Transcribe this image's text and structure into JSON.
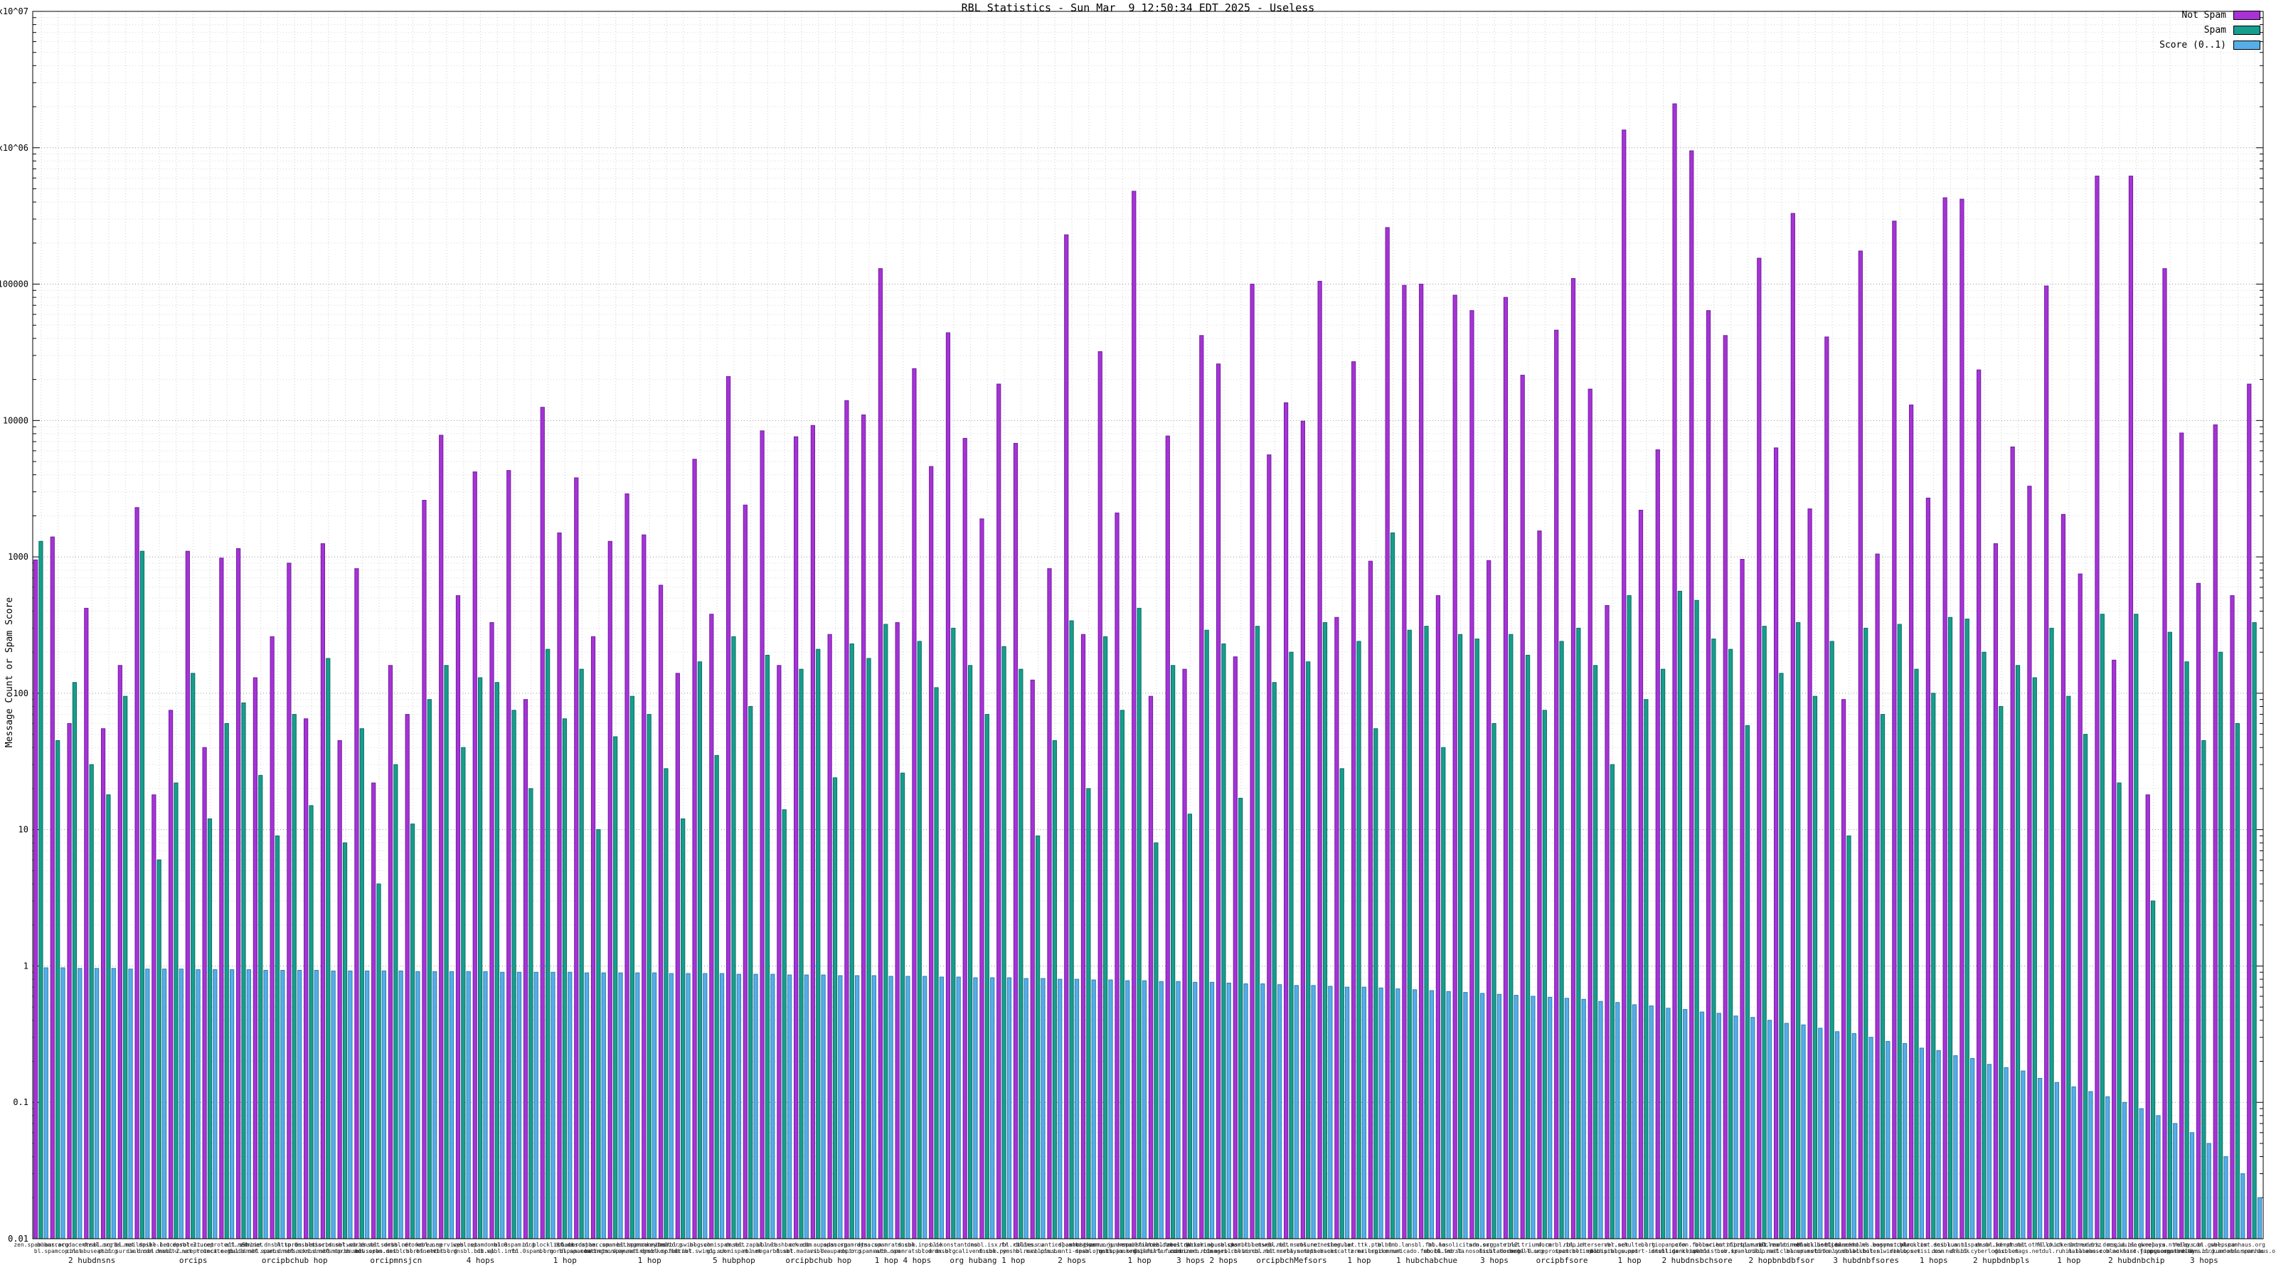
{
  "chart_data": {
    "type": "bar",
    "log_y": true,
    "grid": true,
    "legend_position": "top-right",
    "title": "RBL Statistics - Sun Mar  9 12:50:34 EDT 2025 - Useless",
    "ylabel": "Message Count or Spam Score",
    "xlabel": "",
    "ylim": [
      0.01,
      10000000
    ],
    "ytick_labels": [
      "0.01",
      "0.1",
      "1",
      "10",
      "100",
      "1000",
      "10000",
      "100000",
      "1x10^06",
      "1x10^07"
    ],
    "categories": [
      "zen.spamhaus.org",
      "bl.spamcop.net",
      "b.barracudacentral.org",
      "cbl.abuseat.org",
      "dnsbl.sorbs.net",
      "psbl.surriel.com",
      "bl.mailspike.net",
      "ix.dnsbl.manitu.net",
      "dnsbl-1.uceprotect.net",
      "dnsbl-2.uceprotect.net",
      "dnsbl-3.uceprotect.net",
      "truncate.gbudb.net",
      "all.s5h.net",
      "dul.dnsbl.sorbs.net",
      "zombie.dnsbl.sorbs.net",
      "spam.dnsbl.sorbs.net",
      "http.dnsbl.sorbs.net",
      "socks.dnsbl.sorbs.net",
      "misc.dnsbl.sorbs.net",
      "smtp.dnsbl.sorbs.net",
      "web.dnsbl.sorbs.net",
      "new.spam.dnsbl.sorbs.net",
      "dnsbl.dronebl.org",
      "rbl.efnetrbl.org",
      "korea.services.net",
      "virbl.dnsbl.bit.nl",
      "wpbl.spamdomains",
      "db.wpbl.info",
      "bl.0spam.org",
      "rbl.0spam.org",
      "bl.blocklist.de",
      "bl.nordspam.com",
      "dbl.nordspam.com",
      "bl.spameatingmonkey.net",
      "backscatter.spameatingmonkey.net",
      "badnets.spameatingmonkey.net",
      "bl.spamcannibal.org",
      "dnsbl.spfbl.net",
      "dnsrbl.swinog.ch",
      "uribl.swinog.ch",
      "bl.suomispam.net",
      "gl.suomispam.net",
      "dnsbl.zapbl.net",
      "rbl.megarbl.net",
      "ubl.lashback.com",
      "dnsbl.madavi.de",
      "orvedb.aupads.org",
      "rsbl.aupads.org",
      "spam.spamrats.com",
      "noptr.spamrats.com",
      "dyna.spamrats.com",
      "auth.spamrats.com",
      "dnsbl.inps.de",
      "bl.drmx.org",
      "bl.konstant.no",
      "dnsbl.calivent.com.pe",
      "dnsbl.isx.fr",
      "dnsbl.rymsho.ru",
      "rbl.rbldns.ru",
      "bl.mav.com.br",
      "cblless.anti-spam.org.cn",
      "cblplus.anti-spam.org.cn",
      "cdl.anti-spam.org.cn",
      "dnsbl.justspam.org",
      "hostkarma.junkemailfilter.com",
      "nobl.junkemailfilter.com",
      "spamsources.fabel.dk",
      "0spamurl.fusionzero.com",
      "uribl.zeustracker.abuse.ch",
      "combined.rbl.msrbl.net",
      "phishing.rbl.msrbl.net",
      "images.rbl.msrbl.net",
      "spam.rbl.msrbl.net",
      "virus.rbl.msrbl.net",
      "web.rbl.msrbl.net",
      "relays.nether.net",
      "unsure.nether.net",
      "ips.backscatterer.org",
      "singular.ttk.pte.hu",
      "z.mailspike.net",
      "bl.fmb.la",
      "communicado.fmb.la",
      "nsbl.fmb.la",
      "short.fmb.la",
      "bl.nosolicitado.org",
      "bl.worst.nosolicitado.org",
      "srn.surgate.net",
      "dnsbl.tornevall.org",
      "rbl2.triumf.ca",
      "dnsbl-0.uceprotect.net",
      "wormrbl.imp.ch",
      "spamrbl.imp.ch",
      "rbl.interserver.net",
      "rbl.iprange.net",
      "rbl.schulte.org",
      "dob.sibl.support-intelligence.net",
      "bl.tiopan.com",
      "dnsbl.darklist.de",
      "pofon.foobar.hu",
      "spamlist.or.kr",
      "bl.scientificspam.net",
      "bsb.spamlookup.net",
      "niprbl.mailcleaner.net",
      "uribl.mailcleaner.net",
      "rbl.realtimeblacklist.com",
      "bl.spamstinks.com",
      "dnsbl.beetjevreemd.nl",
      "bitonly.dnsbl.bit.nl",
      "bl.blackholes.easynet.nl",
      "blackholes.wirehub.net",
      "bogons.cymru.com",
      "dialups.visi.com",
      "blacklist.sci.kun.nl",
      "dev.null.dk",
      "dnsbl.antispam.or.id",
      "dnsbl.cyberlogic.net",
      "dnsbl.kempt.net",
      "dnsbl.mags.net",
      "dnsbl.othello.ch",
      "dul.ru",
      "fl.chickenboner.biz",
      "hil.habeas.com",
      "intruders.docs.uu.se",
      "mail-abuse.blacklist.jippg.org",
      "msgid.bl.gweep.ca",
      "no-more-funn.moensted.dk",
      "okrelays.nthelp.com",
      "pss.spambusters.org.ar",
      "relays.bl.gweep.ca",
      "relays.bl.kundenserver.de",
      "sbl.spamhaus.org",
      "xbl.spamhaus.org"
    ],
    "sub_labels": [
      {
        "text": "2 hubdnsns",
        "at": 3
      },
      {
        "text": "orcips",
        "at": 9
      },
      {
        "text": "orcipbchub hop",
        "at": 15
      },
      {
        "text": "orcipmnsjcn",
        "at": 21
      },
      {
        "text": "4 hops",
        "at": 26
      },
      {
        "text": "1 hop",
        "at": 31
      },
      {
        "text": "1 hop",
        "at": 36
      },
      {
        "text": "5 hubphop",
        "at": 41
      },
      {
        "text": "orcipbchub hop",
        "at": 46
      },
      {
        "text": "1 hop 4 hops",
        "at": 51
      },
      {
        "text": "org hubang 1 hop",
        "at": 56
      },
      {
        "text": "2 hops",
        "at": 61
      },
      {
        "text": "1 hop",
        "at": 65
      },
      {
        "text": "3 hops 2 hops",
        "at": 69
      },
      {
        "text": "orcipbchMefsors",
        "at": 74
      },
      {
        "text": "1 hop",
        "at": 78
      },
      {
        "text": "1 hubchabchue",
        "at": 82
      },
      {
        "text": "3 hops",
        "at": 86
      },
      {
        "text": "orcipbfsore",
        "at": 90
      },
      {
        "text": "1 hop",
        "at": 94
      },
      {
        "text": "2 hubdnsbchsore",
        "at": 98
      },
      {
        "text": "2 hopbnbdbfsor",
        "at": 103
      },
      {
        "text": "3 hubdnbfsores",
        "at": 108
      },
      {
        "text": "1 hops",
        "at": 112
      },
      {
        "text": "2 hupbdnbpls",
        "at": 116
      },
      {
        "text": "1 hop",
        "at": 120
      },
      {
        "text": "2 hubdnbchip",
        "at": 124
      },
      {
        "text": "3 hops",
        "at": 128
      }
    ],
    "series": [
      {
        "name": "Not Spam",
        "color": "#a832d6",
        "edge": "#6e1fa3",
        "values": [
          950,
          1400,
          60,
          420,
          55,
          160,
          2300,
          18,
          75,
          1100,
          40,
          980,
          1150,
          130,
          260,
          900,
          65,
          1250,
          45,
          820,
          22,
          160,
          70,
          2600,
          7800,
          520,
          4200,
          330,
          4300,
          90,
          12500,
          1500,
          3800,
          260,
          1300,
          2900,
          1450,
          620,
          140,
          5200,
          380,
          21000,
          2400,
          8400,
          160,
          7600,
          9200,
          270,
          14000,
          11000,
          130000,
          330,
          24000,
          4600,
          44000,
          7400,
          1900,
          18500,
          6800,
          125,
          820,
          230000,
          270,
          32000,
          2100,
          480000,
          95,
          7700,
          150,
          42000,
          26000,
          185,
          100000,
          5600,
          13500,
          9900,
          105000,
          360,
          27000,
          930,
          260000,
          98000,
          100000,
          520,
          83000,
          64000,
          940,
          80000,
          21500,
          1550,
          46000,
          110000,
          17000,
          440,
          1350000,
          2200,
          6100,
          2100000,
          950000,
          64000,
          42000,
          960,
          155000,
          6300,
          330000,
          2250,
          41000,
          90,
          175000,
          1050,
          290000,
          13000,
          2700,
          430000,
          420000,
          23500,
          1250,
          6400,
          3300,
          97000,
          2050,
          750,
          620000,
          175,
          620000,
          18,
          130000,
          8100,
          640,
          9300,
          520,
          18500
        ]
      },
      {
        "name": "Spam",
        "color": "#169e8e",
        "edge": "#0a6e60",
        "values": [
          1300,
          45,
          120,
          30,
          18,
          95,
          1100,
          6,
          22,
          140,
          12,
          60,
          85,
          25,
          9,
          70,
          15,
          180,
          8,
          55,
          4,
          30,
          11,
          90,
          160,
          40,
          130,
          120,
          75,
          20,
          210,
          65,
          150,
          10,
          48,
          95,
          70,
          28,
          12,
          170,
          35,
          260,
          80,
          190,
          14,
          150,
          210,
          24,
          230,
          180,
          320,
          26,
          240,
          110,
          300,
          160,
          70,
          220,
          150,
          9,
          45,
          340,
          20,
          260,
          75,
          420,
          8,
          160,
          13,
          290,
          230,
          17,
          310,
          120,
          200,
          170,
          330,
          28,
          240,
          55,
          1500,
          290,
          310,
          40,
          270,
          250,
          60,
          270,
          190,
          75,
          240,
          300,
          160,
          30,
          520,
          90,
          150,
          560,
          480,
          250,
          210,
          58,
          310,
          140,
          330,
          95,
          240,
          9,
          300,
          70,
          320,
          150,
          100,
          360,
          350,
          200,
          80,
          160,
          130,
          300,
          95,
          50,
          380,
          22,
          380,
          3,
          280,
          170,
          45,
          200,
          60,
          330
        ]
      },
      {
        "name": "Score (0..1)",
        "color": "#56aee8",
        "edge": "#2e7cb5",
        "values": [
          0.97,
          0.97,
          0.96,
          0.96,
          0.96,
          0.95,
          0.95,
          0.95,
          0.95,
          0.94,
          0.94,
          0.94,
          0.94,
          0.93,
          0.93,
          0.93,
          0.93,
          0.92,
          0.92,
          0.92,
          0.92,
          0.92,
          0.91,
          0.91,
          0.91,
          0.91,
          0.91,
          0.9,
          0.9,
          0.9,
          0.9,
          0.9,
          0.89,
          0.89,
          0.89,
          0.89,
          0.89,
          0.88,
          0.88,
          0.88,
          0.88,
          0.87,
          0.87,
          0.87,
          0.86,
          0.86,
          0.86,
          0.85,
          0.85,
          0.85,
          0.84,
          0.84,
          0.84,
          0.83,
          0.83,
          0.82,
          0.82,
          0.82,
          0.81,
          0.81,
          0.8,
          0.8,
          0.79,
          0.79,
          0.78,
          0.78,
          0.77,
          0.77,
          0.76,
          0.76,
          0.75,
          0.74,
          0.74,
          0.73,
          0.72,
          0.72,
          0.71,
          0.7,
          0.7,
          0.69,
          0.68,
          0.67,
          0.66,
          0.65,
          0.64,
          0.63,
          0.62,
          0.61,
          0.6,
          0.59,
          0.58,
          0.57,
          0.55,
          0.54,
          0.52,
          0.51,
          0.49,
          0.48,
          0.46,
          0.45,
          0.43,
          0.42,
          0.4,
          0.38,
          0.37,
          0.35,
          0.33,
          0.32,
          0.3,
          0.28,
          0.27,
          0.25,
          0.24,
          0.22,
          0.21,
          0.19,
          0.18,
          0.17,
          0.15,
          0.14,
          0.13,
          0.12,
          0.11,
          0.1,
          0.09,
          0.08,
          0.07,
          0.06,
          0.05,
          0.04,
          0.03,
          0.02
        ]
      }
    ]
  }
}
